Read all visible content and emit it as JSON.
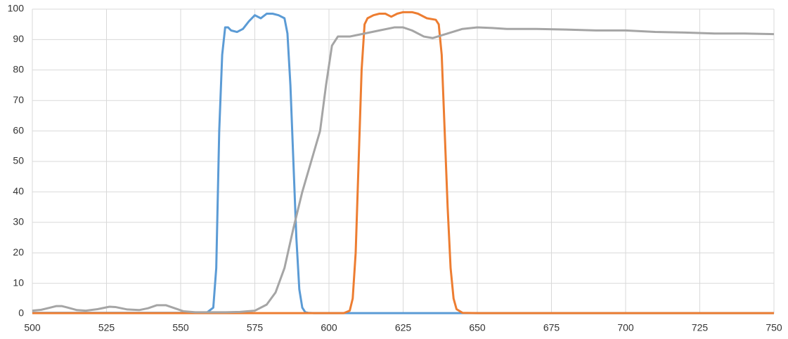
{
  "chart_data": {
    "type": "line",
    "xlim": [
      500,
      750
    ],
    "xticks": [
      500,
      525,
      550,
      575,
      600,
      625,
      650,
      675,
      700,
      725,
      750
    ],
    "ylim": [
      0,
      100
    ],
    "yticks": [
      0,
      10,
      20,
      30,
      40,
      50,
      60,
      70,
      80,
      90,
      100
    ],
    "grid": true,
    "series": [
      {
        "color": "#5b9bd5",
        "x": [
          500,
          555,
          559,
          561,
          562,
          563,
          564,
          565,
          566,
          567,
          569,
          571,
          573,
          575,
          577,
          579,
          581,
          583,
          585,
          586,
          587,
          588,
          589,
          590,
          591,
          592,
          593,
          595,
          600,
          750
        ],
        "values": [
          0.3,
          0.3,
          0.5,
          2,
          15,
          60,
          85,
          94,
          94,
          93,
          92.5,
          93.5,
          96,
          98,
          97,
          98.5,
          98.5,
          98,
          97,
          92,
          75,
          50,
          25,
          8,
          2,
          0.5,
          0.3,
          0.2,
          0.2,
          0.2
        ]
      },
      {
        "color": "#ed7d31",
        "x": [
          500,
          605,
          607,
          608,
          609,
          610,
          611,
          612,
          613,
          615,
          617,
          619,
          620,
          621,
          623,
          625,
          628,
          630,
          633,
          636,
          637,
          638,
          639,
          640,
          641,
          642,
          643,
          645,
          650,
          750
        ],
        "values": [
          0.2,
          0.2,
          1,
          5,
          20,
          50,
          80,
          95,
          97,
          98,
          98.5,
          98.5,
          98,
          97.5,
          98.5,
          99,
          99,
          98.5,
          97,
          96.5,
          95,
          85,
          60,
          35,
          15,
          5,
          1.5,
          0.3,
          0.2,
          0.2
        ]
      },
      {
        "color": "#a5a5a5",
        "x": [
          500,
          503,
          506,
          508,
          510,
          512,
          515,
          518,
          522,
          526,
          528,
          532,
          536,
          539,
          542,
          545,
          548,
          551,
          555,
          565,
          570,
          575,
          579,
          582,
          585,
          588,
          591,
          594,
          597,
          599,
          601,
          603,
          607,
          612,
          617,
          622,
          625,
          628,
          632,
          635,
          640,
          645,
          650,
          655,
          660,
          670,
          680,
          690,
          700,
          710,
          720,
          730,
          740,
          750
        ],
        "values": [
          1,
          1.3,
          2,
          2.5,
          2.5,
          2,
          1.2,
          1,
          1.5,
          2.3,
          2.2,
          1.4,
          1.2,
          1.8,
          2.8,
          2.8,
          1.8,
          0.8,
          0.5,
          0.5,
          0.6,
          1,
          3,
          7,
          15,
          28,
          40,
          50,
          60,
          75,
          88,
          91,
          91,
          92,
          93,
          94,
          94,
          93,
          91,
          90.5,
          92,
          93.5,
          94,
          93.8,
          93.5,
          93.5,
          93.3,
          93,
          93,
          92.5,
          92.3,
          92,
          92,
          91.8
        ]
      }
    ]
  }
}
